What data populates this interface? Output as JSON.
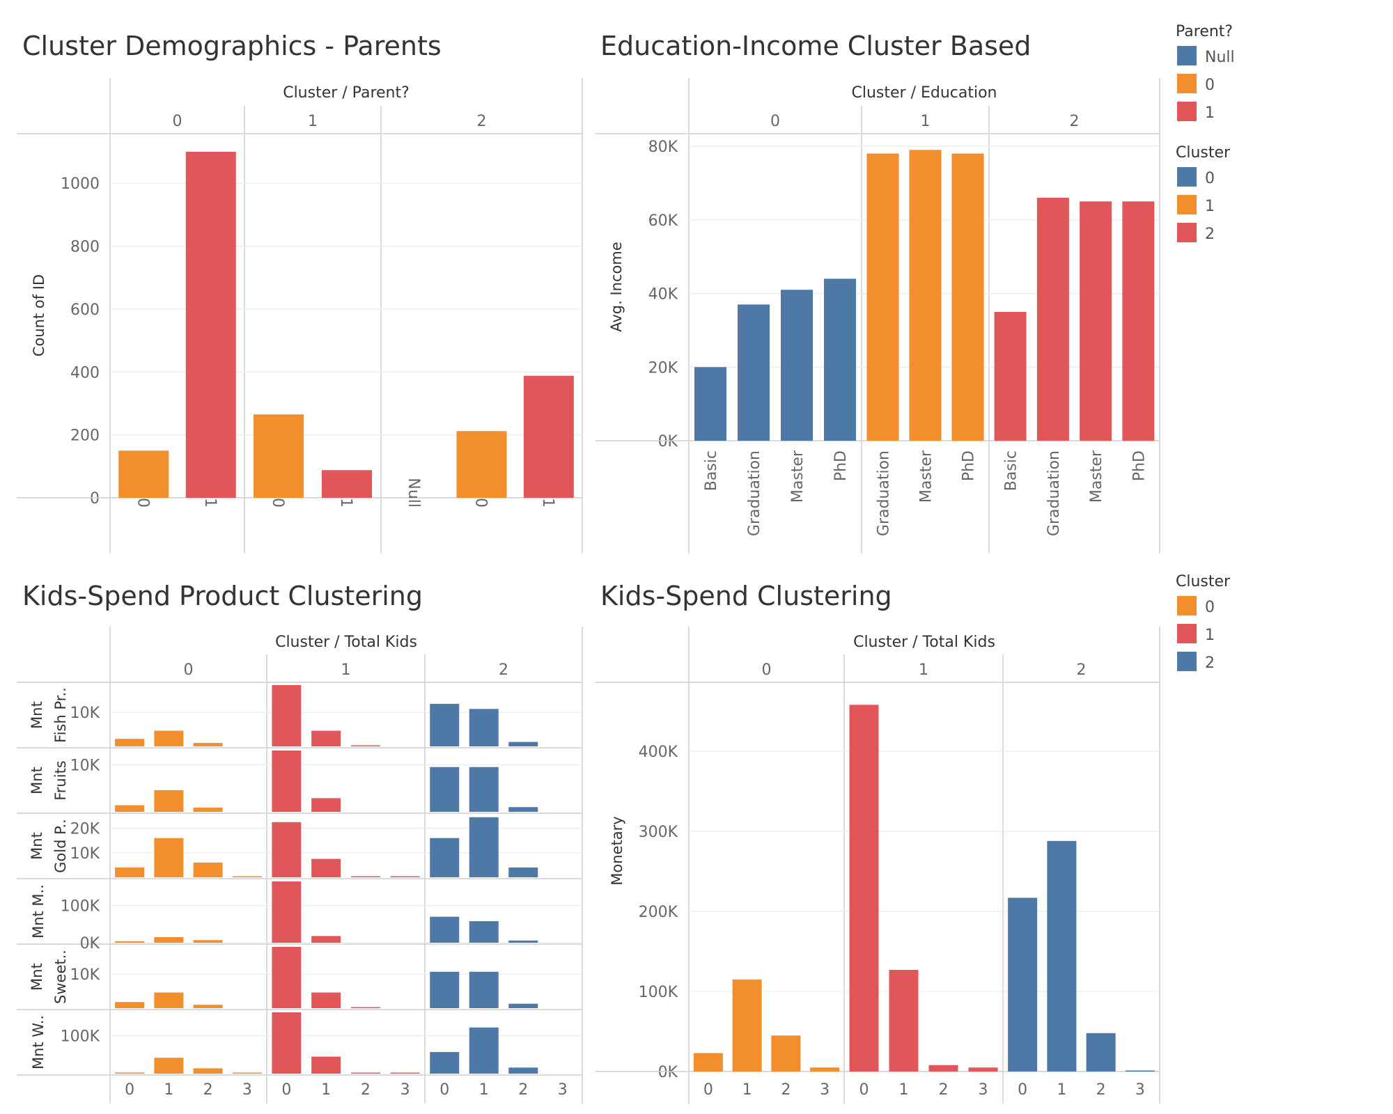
{
  "colors": {
    "blue": "#4e79a7",
    "orange": "#f28e2b",
    "red": "#e15759",
    "grid": "#ececec",
    "line": "#cfcfcf"
  },
  "chart_data": [
    {
      "type": "bar",
      "title": "Cluster Demographics - Parents",
      "header": "Cluster / Parent?",
      "ylabel": "Count of ID",
      "ylim": [
        0,
        1150
      ],
      "yticks": [
        "0",
        "200",
        "400",
        "600",
        "800",
        "1000"
      ],
      "panes": [
        {
          "label": "0",
          "categories": [
            "0",
            "1"
          ],
          "values": [
            150,
            1100
          ]
        },
        {
          "label": "1",
          "categories": [
            "0",
            "1"
          ],
          "values": [
            265,
            88
          ]
        },
        {
          "label": "2",
          "categories": [
            "Null",
            "0",
            "1"
          ],
          "values": [
            0,
            212,
            388
          ]
        }
      ],
      "color_by": "Parent?"
    },
    {
      "type": "bar",
      "title": "Education-Income Cluster Based",
      "header": "Cluster / Education",
      "ylabel": "Avg. Income",
      "ylim": [
        0,
        82000
      ],
      "yticks": [
        "0K",
        "20K",
        "40K",
        "60K",
        "80K"
      ],
      "panes": [
        {
          "label": "0",
          "categories": [
            "Basic",
            "Graduation",
            "Master",
            "PhD"
          ],
          "values": [
            20000,
            37000,
            41000,
            44000
          ]
        },
        {
          "label": "1",
          "categories": [
            "Graduation",
            "Master",
            "PhD"
          ],
          "values": [
            78000,
            79000,
            78000
          ]
        },
        {
          "label": "2",
          "categories": [
            "Basic",
            "Graduation",
            "Master",
            "PhD"
          ],
          "values": [
            35000,
            66000,
            65000,
            65000
          ]
        }
      ],
      "color_by": "Cluster"
    },
    {
      "type": "bar",
      "title": "Kids-Spend Product Clustering",
      "header": "Cluster / Total Kids",
      "panes": [
        "0",
        "1",
        "2"
      ],
      "categories": [
        "0",
        "1",
        "2",
        "3"
      ],
      "rows": [
        {
          "label": [
            "Mnt",
            "Fish Pr.."
          ],
          "max": 18000,
          "ticks": [
            "10K"
          ],
          "values": [
            [
              2200,
              4600,
              1000,
              null
            ],
            [
              18000,
              4600,
              300,
              null
            ],
            [
              12500,
              11000,
              1300,
              null
            ]
          ]
        },
        {
          "label": [
            "Mnt",
            "Fruits"
          ],
          "max": 13000,
          "ticks": [
            "10K"
          ],
          "values": [
            [
              1400,
              4600,
              900,
              null
            ],
            [
              13000,
              2900,
              null,
              null
            ],
            [
              9500,
              9500,
              1000,
              null
            ]
          ]
        },
        {
          "label": [
            "Mnt",
            "Gold P.."
          ],
          "max": 25000,
          "ticks": [
            "10K",
            "20K"
          ],
          "values": [
            [
              4000,
              16000,
              6000,
              300
            ],
            [
              22500,
              7500,
              400,
              400
            ],
            [
              16000,
              24500,
              4000,
              null
            ]
          ]
        },
        {
          "label": [
            "Mnt M.."
          ],
          "max": 165000,
          "ticks": [
            "0K",
            "100K"
          ],
          "values": [
            [
              4000,
              15000,
              7000,
              null
            ],
            [
              165000,
              18000,
              null,
              null
            ],
            [
              70000,
              58000,
              6000,
              null
            ]
          ]
        },
        {
          "label": [
            "Mnt",
            "Sweet.."
          ],
          "max": 18000,
          "ticks": [
            "10K"
          ],
          "values": [
            [
              1800,
              4600,
              1000,
              null
            ],
            [
              18000,
              4600,
              300,
              null
            ],
            [
              10700,
              10700,
              1300,
              null
            ]
          ]
        },
        {
          "label": [
            "Mnt W.."
          ],
          "max": 162000,
          "ticks": [
            "100K"
          ],
          "values": [
            [
              3000,
              42000,
              14000,
              1000
            ],
            [
              162000,
              45000,
              1000,
              1000
            ],
            [
              57000,
              122000,
              16000,
              null
            ]
          ]
        }
      ],
      "color_by": "Cluster"
    },
    {
      "type": "bar",
      "title": "Kids-Spend Clustering",
      "header": "Cluster / Total Kids",
      "ylabel": "Monetary",
      "ylim": [
        0,
        465000
      ],
      "yticks": [
        "0K",
        "100K",
        "200K",
        "300K",
        "400K"
      ],
      "panes": [
        {
          "label": "0",
          "categories": [
            "0",
            "1",
            "2",
            "3"
          ],
          "values": [
            23000,
            115000,
            45000,
            5000
          ]
        },
        {
          "label": "1",
          "categories": [
            "0",
            "1",
            "2",
            "3"
          ],
          "values": [
            458000,
            127000,
            8000,
            5000
          ]
        },
        {
          "label": "2",
          "categories": [
            "0",
            "1",
            "2",
            "3"
          ],
          "values": [
            217000,
            288000,
            48000,
            1000
          ]
        }
      ],
      "color_by": "Cluster"
    }
  ],
  "legends": [
    {
      "title": "Parent?",
      "items": [
        {
          "label": "Null",
          "color": "#4e79a7"
        },
        {
          "label": "0",
          "color": "#f28e2b"
        },
        {
          "label": "1",
          "color": "#e15759"
        }
      ]
    },
    {
      "title": "Cluster",
      "items": [
        {
          "label": "0",
          "color": "#4e79a7"
        },
        {
          "label": "1",
          "color": "#f28e2b"
        },
        {
          "label": "2",
          "color": "#e15759"
        }
      ]
    },
    {
      "title": "Cluster",
      "items": [
        {
          "label": "0",
          "color": "#f28e2b"
        },
        {
          "label": "1",
          "color": "#e15759"
        },
        {
          "label": "2",
          "color": "#4e79a7"
        }
      ]
    }
  ]
}
